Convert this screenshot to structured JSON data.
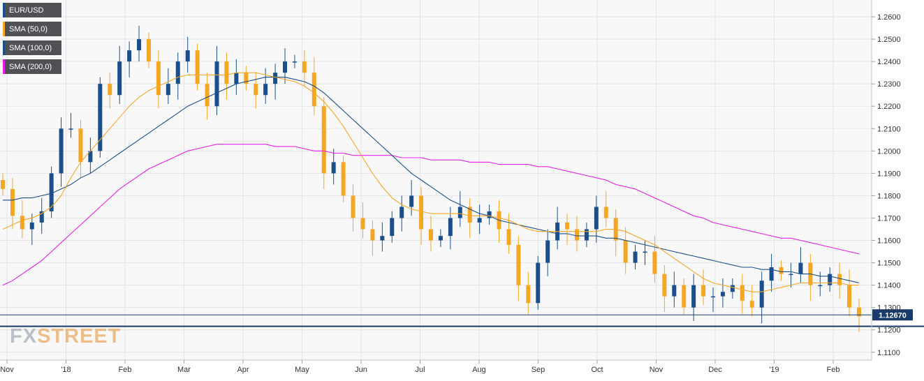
{
  "legend": [
    {
      "label": "EUR/USD",
      "color": "#1a4f8c"
    },
    {
      "label": "SMA (50,0)",
      "color": "#f5a623"
    },
    {
      "label": "SMA (100,0)",
      "color": "#1a4f8c"
    },
    {
      "label": "SMA (200,0)",
      "color": "#e81ee8"
    }
  ],
  "logo": {
    "part1": "FX",
    "part2": "STREET"
  },
  "colors": {
    "up": "#1a4f8c",
    "down": "#f5a623",
    "sma50": "#f5a623",
    "sma100": "#1a4f8c",
    "sma200": "#e81ee8",
    "support": "#1a3a6b",
    "price_tag": "#1a3a6b"
  },
  "chart_data": {
    "type": "candlestick",
    "x_tick_labels": [
      "Nov",
      "'18",
      "Feb",
      "Mar",
      "Apr",
      "May",
      "Jun",
      "Jul",
      "Aug",
      "Sep",
      "Oct",
      "Nov",
      "Dec",
      "'19",
      "Feb"
    ],
    "y_tick_labels": [
      "1.2600",
      "1.2500",
      "1.2400",
      "1.2300",
      "1.2200",
      "1.2100",
      "1.2000",
      "1.1900",
      "1.1800",
      "1.1700",
      "1.1600",
      "1.1500",
      "1.1400",
      "1.1300",
      "1.1200",
      "1.1100"
    ],
    "ylim": [
      1.1065,
      1.2675
    ],
    "current_price": "1.12670",
    "current_price_value": 1.1267,
    "support_level": 1.1216,
    "close": [
      1.183,
      1.171,
      1.165,
      1.168,
      1.173,
      1.19,
      1.21,
      1.21,
      1.195,
      1.2,
      1.23,
      1.225,
      1.24,
      1.245,
      1.25,
      1.24,
      1.225,
      1.23,
      1.24,
      1.245,
      1.23,
      1.22,
      1.24,
      1.23,
      1.235,
      1.23,
      1.225,
      1.23,
      1.235,
      1.24,
      1.24,
      1.235,
      1.22,
      1.19,
      1.195,
      1.18,
      1.17,
      1.165,
      1.16,
      1.162,
      1.17,
      1.175,
      1.18,
      1.165,
      1.16,
      1.162,
      1.17,
      1.175,
      1.168,
      1.17,
      1.173,
      1.165,
      1.158,
      1.14,
      1.132,
      1.15,
      1.16,
      1.168,
      1.165,
      1.16,
      1.165,
      1.175,
      1.17,
      1.16,
      1.15,
      1.155,
      1.155,
      1.145,
      1.135,
      1.14,
      1.13,
      1.14,
      1.135,
      1.135,
      1.137,
      1.14,
      1.133,
      1.13,
      1.142,
      1.148,
      1.145,
      1.145,
      1.15,
      1.14,
      1.14,
      1.145,
      1.14,
      1.13,
      1.126
    ],
    "sma50": [
      1.165,
      1.167,
      1.169,
      1.17,
      1.172,
      1.175,
      1.18,
      1.188,
      1.195,
      1.2,
      1.205,
      1.21,
      1.215,
      1.22,
      1.224,
      1.227,
      1.229,
      1.231,
      1.233,
      1.234,
      1.234,
      1.234,
      1.234,
      1.234,
      1.235,
      1.235,
      1.235,
      1.234,
      1.233,
      1.232,
      1.231,
      1.229,
      1.226,
      1.222,
      1.217,
      1.211,
      1.204,
      1.197,
      1.19,
      1.184,
      1.179,
      1.176,
      1.174,
      1.173,
      1.172,
      1.172,
      1.172,
      1.172,
      1.171,
      1.171,
      1.171,
      1.17,
      1.169,
      1.167,
      1.165,
      1.164,
      1.164,
      1.164,
      1.164,
      1.164,
      1.164,
      1.164,
      1.165,
      1.165,
      1.164,
      1.162,
      1.16,
      1.158,
      1.155,
      1.152,
      1.149,
      1.146,
      1.143,
      1.141,
      1.14,
      1.139,
      1.138,
      1.137,
      1.137,
      1.138,
      1.139,
      1.14,
      1.141,
      1.141,
      1.141,
      1.141,
      1.141,
      1.14,
      1.14
    ],
    "sma100": [
      1.178,
      1.178,
      1.179,
      1.179,
      1.18,
      1.181,
      1.183,
      1.185,
      1.188,
      1.19,
      1.193,
      1.196,
      1.199,
      1.202,
      1.205,
      1.208,
      1.211,
      1.214,
      1.217,
      1.22,
      1.222,
      1.224,
      1.226,
      1.228,
      1.23,
      1.231,
      1.232,
      1.233,
      1.233,
      1.233,
      1.232,
      1.231,
      1.229,
      1.226,
      1.222,
      1.218,
      1.214,
      1.21,
      1.206,
      1.202,
      1.198,
      1.194,
      1.19,
      1.187,
      1.184,
      1.181,
      1.178,
      1.176,
      1.174,
      1.172,
      1.171,
      1.169,
      1.168,
      1.167,
      1.166,
      1.165,
      1.164,
      1.163,
      1.163,
      1.162,
      1.162,
      1.162,
      1.161,
      1.161,
      1.16,
      1.159,
      1.158,
      1.157,
      1.156,
      1.155,
      1.154,
      1.153,
      1.152,
      1.151,
      1.15,
      1.149,
      1.148,
      1.148,
      1.147,
      1.147,
      1.146,
      1.146,
      1.145,
      1.145,
      1.144,
      1.144,
      1.143,
      1.142,
      1.141
    ],
    "sma200": [
      1.14,
      1.142,
      1.145,
      1.148,
      1.151,
      1.155,
      1.159,
      1.163,
      1.167,
      1.171,
      1.175,
      1.179,
      1.183,
      1.186,
      1.189,
      1.192,
      1.194,
      1.196,
      1.198,
      1.2,
      1.201,
      1.202,
      1.203,
      1.203,
      1.203,
      1.203,
      1.203,
      1.203,
      1.202,
      1.202,
      1.202,
      1.201,
      1.2,
      1.2,
      1.199,
      1.199,
      1.198,
      1.198,
      1.198,
      1.198,
      1.198,
      1.197,
      1.197,
      1.197,
      1.196,
      1.196,
      1.196,
      1.196,
      1.195,
      1.195,
      1.195,
      1.194,
      1.194,
      1.194,
      1.194,
      1.193,
      1.193,
      1.192,
      1.191,
      1.19,
      1.189,
      1.188,
      1.187,
      1.185,
      1.184,
      1.183,
      1.181,
      1.179,
      1.177,
      1.175,
      1.173,
      1.171,
      1.17,
      1.168,
      1.167,
      1.166,
      1.165,
      1.164,
      1.163,
      1.162,
      1.161,
      1.161,
      1.16,
      1.159,
      1.158,
      1.157,
      1.156,
      1.155,
      1.154
    ]
  }
}
